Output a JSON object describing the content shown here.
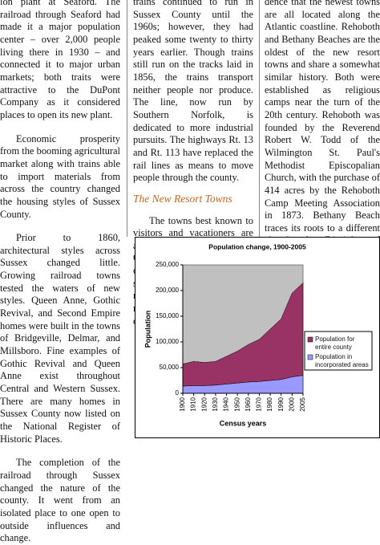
{
  "column_1": [
    "lon plant at Seaford. The railroad through Seaford had made it a major population center – over 2,000 people living there in 1930 – and connected it to major urban markets; both traits were attractive to the DuPont Company as it considered places to open its new plant.",
    "Economic prosperity from the booming agricultural market along with trains able to import materials from across the country changed the housing styles of Sussex County.",
    "Prior to 1860, architectural styles across Sussex changed little. Growing railroad towns tested the waters of new styles. Queen Anne, Gothic Revival, and Second Empire homes were built in the towns of Bridgeville, Delmar, and Millsboro. Fine examples of Gothic Revival and Queen Anne exist throughout Central and Western Sussex. There are many homes in Sussex County now listed on the National Register of Historic Places.",
    "The completion of the railroad through Sussex changed the nature of the county. It went from an isolated place to one open to outside influences and change."
  ],
  "column_2": {
    "before": [
      "trains continued to run in Sussex County until the 1960s; however, they had peaked some twenty to thirty years earlier. Though trains still run on the tracks laid in 1856, the trains transport neither people nor produce. The line, now run by Southern Norfolk, is dedicated to more industrial pursuits. The highways Rt. 13 and Rt. 113 have replaced the rail lines as means to move people through the county."
    ],
    "heading": "The New Resort Towns",
    "after": [
      "The towns best known to visitors and vacationers are actually the newest. Sussex County is known today as an excellent place to visit in the summer. However, these resort towns are only the most recent change to Sussex's complexion. It is no coinci-"
    ]
  },
  "column_3": [
    "dence that the newest towns are all located along the Atlantic coastline. Rehoboth and Bethany Beaches are the oldest of the new resort towns and share a somewhat similar history. Both were established as religious camps near the turn of the 20th century. Rehoboth was founded by the Reverend Robert W. Todd of the Wilmington St. Paul's Methodist Episcopalian Church, with the purchase of 414 acres by the Rehoboth Camp Meeting Association in 1873. Bethany Beach traces its roots to a different church, the Disciples of Christ of Washington, DC. Bethany was established with the same mission as Rehoboth: to provide a year-round Christian community and resort. However, Rehoboth and Bethany were slow to grow because it"
  ],
  "chart_data": {
    "type": "stacked-area",
    "title": "Population change, 1900-2005",
    "y_label": "Population",
    "x_label": "Census years",
    "categories": [
      "1900",
      "1910",
      "1920",
      "1930",
      "1940",
      "1950",
      "1960",
      "1970",
      "1980",
      "1990",
      "2000",
      "2005"
    ],
    "series": [
      {
        "name": "Population for entire county",
        "color": "#993366",
        "values": [
          43000,
          47000,
          45000,
          46000,
          54000,
          62000,
          73000,
          82000,
          100000,
          118000,
          163000,
          180000
        ]
      },
      {
        "name": "Population in incorporated areas",
        "color": "#9999ff",
        "values": [
          14000,
          15000,
          15000,
          16000,
          18000,
          20000,
          22000,
          23000,
          25000,
          27000,
          32000,
          35000
        ]
      }
    ],
    "ylim": [
      0,
      250000
    ],
    "yticks": [
      0,
      {
        "value": 50000,
        "label": "50,000"
      },
      {
        "value": 100000,
        "label": "100,000"
      },
      {
        "value": 150000,
        "label": "150,000"
      },
      {
        "value": 200000,
        "label": "200,000"
      },
      {
        "value": 250000,
        "label": "250,000"
      }
    ],
    "plot_background": "#c0c0c0",
    "legend": "right"
  }
}
